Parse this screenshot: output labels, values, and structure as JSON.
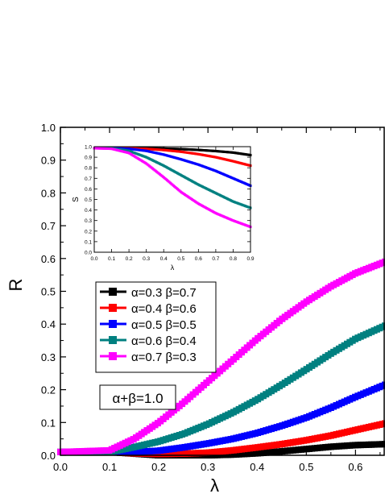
{
  "chart_data": [
    {
      "type": "scatter",
      "xlabel": "λ",
      "ylabel": "R",
      "xlim": [
        0.0,
        0.66
      ],
      "ylim": [
        0.0,
        1.0
      ],
      "xticks": [
        "0.0",
        "0.1",
        "0.2",
        "0.3",
        "0.4",
        "0.5",
        "0.6"
      ],
      "yticks": [
        "0.0",
        "0.1",
        "0.2",
        "0.3",
        "0.4",
        "0.5",
        "0.6",
        "0.7",
        "0.8",
        "0.9",
        "1.0"
      ],
      "annotation": "α+β=1.0",
      "legend": {
        "placement": "center-left"
      },
      "series": [
        {
          "name": "α=0.3 β=0.7",
          "color": "#000000",
          "x": [
            0.0,
            0.1,
            0.2,
            0.25,
            0.3,
            0.35,
            0.4,
            0.45,
            0.5,
            0.55,
            0.6,
            0.66
          ],
          "y": [
            0.01,
            0.01,
            0.0,
            0.0,
            0.0,
            0.002,
            0.006,
            0.012,
            0.019,
            0.026,
            0.031,
            0.034
          ]
        },
        {
          "name": "α=0.4 β=0.6",
          "color": "#ff0000",
          "x": [
            0.0,
            0.1,
            0.15,
            0.2,
            0.25,
            0.3,
            0.35,
            0.4,
            0.45,
            0.5,
            0.55,
            0.6,
            0.66
          ],
          "y": [
            0.01,
            0.01,
            0.006,
            0.004,
            0.005,
            0.008,
            0.015,
            0.024,
            0.034,
            0.046,
            0.06,
            0.077,
            0.097
          ]
        },
        {
          "name": "α=0.5 β=0.5",
          "color": "#0000ff",
          "x": [
            0.0,
            0.1,
            0.15,
            0.2,
            0.25,
            0.3,
            0.35,
            0.4,
            0.45,
            0.5,
            0.55,
            0.6,
            0.66
          ],
          "y": [
            0.01,
            0.01,
            0.01,
            0.014,
            0.024,
            0.036,
            0.05,
            0.068,
            0.09,
            0.115,
            0.145,
            0.178,
            0.215
          ]
        },
        {
          "name": "α=0.6 β=0.4",
          "color": "#008080",
          "x": [
            0.0,
            0.1,
            0.15,
            0.2,
            0.25,
            0.3,
            0.35,
            0.4,
            0.45,
            0.5,
            0.55,
            0.6,
            0.66
          ],
          "y": [
            0.01,
            0.01,
            0.025,
            0.042,
            0.065,
            0.095,
            0.13,
            0.17,
            0.215,
            0.262,
            0.31,
            0.355,
            0.395
          ]
        },
        {
          "name": "α=0.7 β=0.3",
          "color": "#ff00ff",
          "x": [
            0.0,
            0.1,
            0.15,
            0.2,
            0.25,
            0.3,
            0.35,
            0.4,
            0.45,
            0.5,
            0.55,
            0.6,
            0.66
          ],
          "y": [
            0.01,
            0.015,
            0.05,
            0.1,
            0.16,
            0.225,
            0.29,
            0.355,
            0.415,
            0.468,
            0.515,
            0.555,
            0.59
          ]
        }
      ]
    },
    {
      "type": "line",
      "xlabel": "λ",
      "ylabel": "S",
      "xlim": [
        0.0,
        0.9
      ],
      "ylim": [
        0.0,
        1.0
      ],
      "xticks": [
        "0.0",
        "0.1",
        "0.2",
        "0.3",
        "0.4",
        "0.5",
        "0.6",
        "0.7",
        "0.8",
        "0.9"
      ],
      "yticks": [
        "0.0",
        "0.1",
        "0.2",
        "0.3",
        "0.4",
        "0.5",
        "0.6",
        "0.7",
        "0.8",
        "0.9",
        "1.0"
      ],
      "series": [
        {
          "color": "#000000",
          "x": [
            0.0,
            0.1,
            0.2,
            0.3,
            0.4,
            0.5,
            0.6,
            0.7,
            0.8,
            0.9
          ],
          "y": [
            0.985,
            0.985,
            0.985,
            0.984,
            0.982,
            0.977,
            0.969,
            0.958,
            0.944,
            0.92
          ]
        },
        {
          "color": "#ff0000",
          "x": [
            0.0,
            0.1,
            0.2,
            0.3,
            0.4,
            0.5,
            0.6,
            0.7,
            0.8,
            0.9
          ],
          "y": [
            0.985,
            0.985,
            0.984,
            0.979,
            0.968,
            0.952,
            0.929,
            0.9,
            0.862,
            0.82
          ]
        },
        {
          "color": "#0000ff",
          "x": [
            0.0,
            0.1,
            0.2,
            0.3,
            0.4,
            0.5,
            0.6,
            0.7,
            0.8,
            0.9
          ],
          "y": [
            0.985,
            0.985,
            0.98,
            0.96,
            0.925,
            0.88,
            0.83,
            0.77,
            0.7,
            0.63
          ]
        },
        {
          "color": "#008080",
          "x": [
            0.0,
            0.1,
            0.2,
            0.3,
            0.4,
            0.5,
            0.6,
            0.7,
            0.8,
            0.9
          ],
          "y": [
            0.985,
            0.985,
            0.96,
            0.9,
            0.82,
            0.73,
            0.64,
            0.56,
            0.48,
            0.42
          ]
        },
        {
          "color": "#ff00ff",
          "x": [
            0.0,
            0.1,
            0.2,
            0.3,
            0.4,
            0.5,
            0.6,
            0.7,
            0.8,
            0.9
          ],
          "y": [
            0.985,
            0.98,
            0.94,
            0.84,
            0.71,
            0.57,
            0.46,
            0.37,
            0.3,
            0.24
          ]
        }
      ]
    }
  ]
}
